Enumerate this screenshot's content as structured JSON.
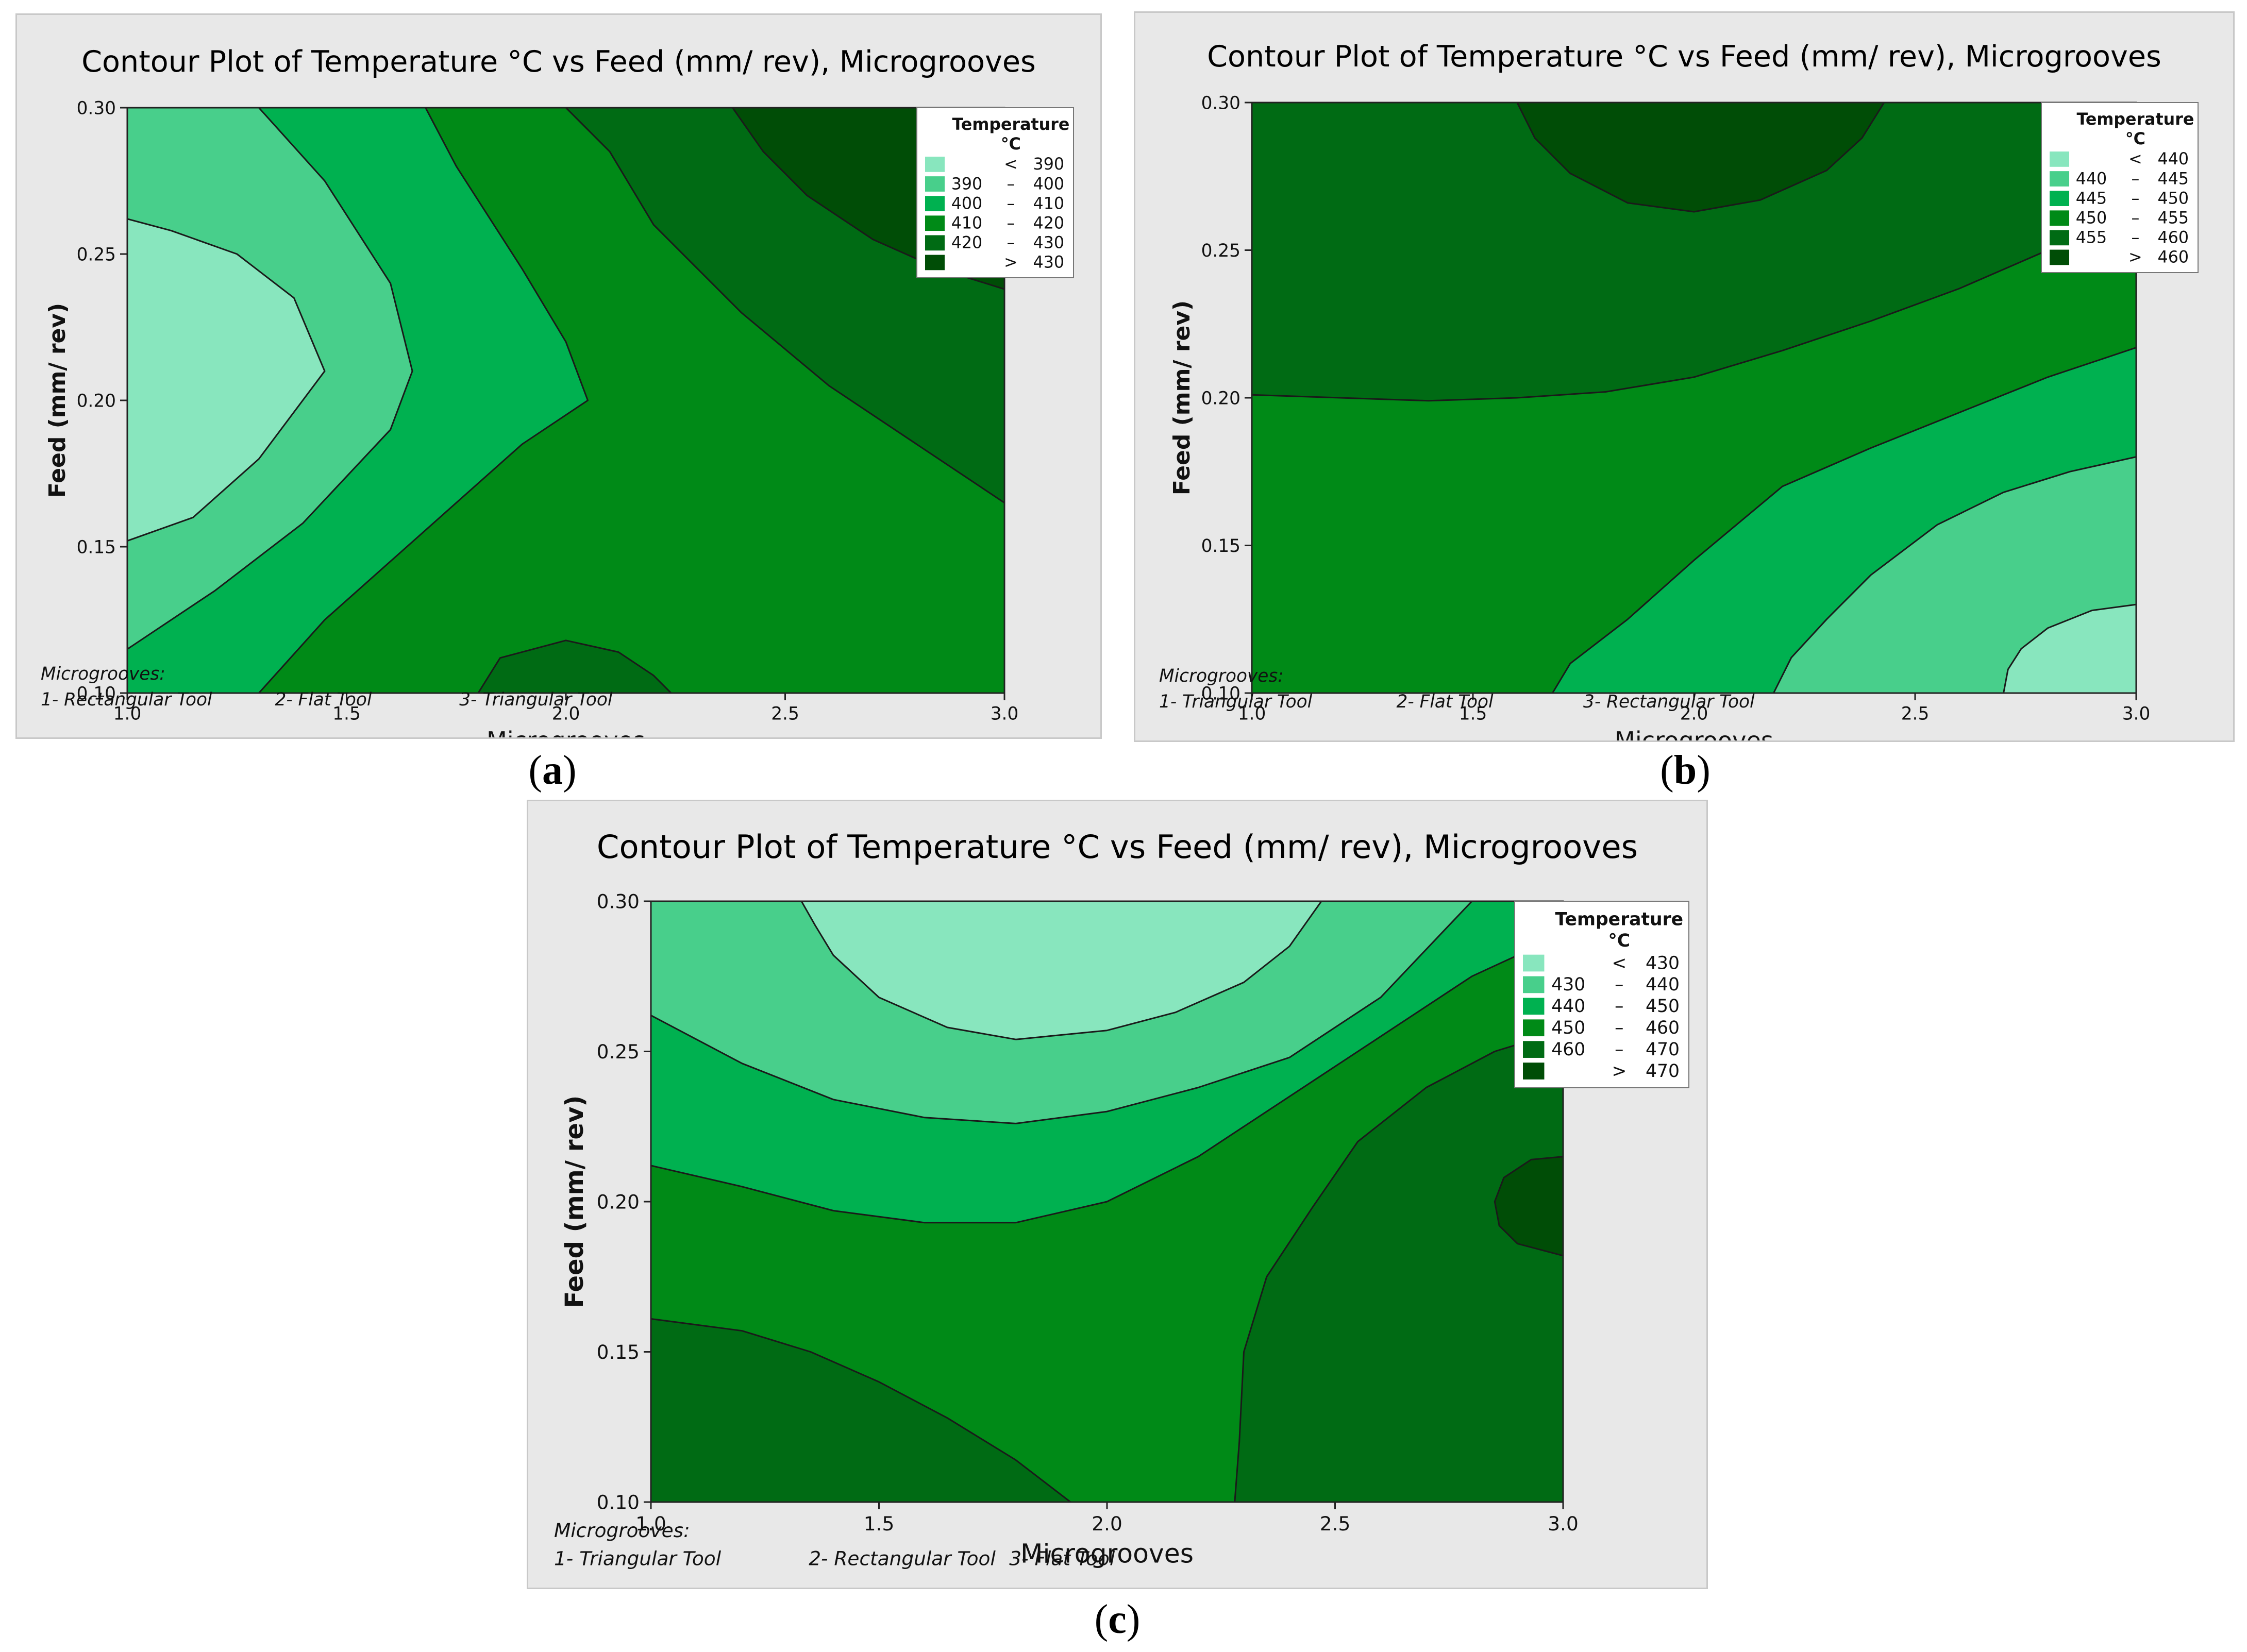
{
  "chart_data": [
    {
      "type": "contour",
      "panel_label": "a",
      "title": "Contour Plot of Temperature °C vs Feed (mm/ rev), Microgrooves",
      "xlabel": "Microgrooves",
      "ylabel": "Feed (mm/ rev)",
      "xlim": [
        1.0,
        3.0
      ],
      "ylim": [
        0.1,
        0.3
      ],
      "xticks": [
        "1.0",
        "1.5",
        "2.0",
        "2.5",
        "3.0"
      ],
      "yticks": [
        "0.10",
        "0.15",
        "0.20",
        "0.25",
        "0.30"
      ],
      "legend_title": [
        "Temperature",
        "°C"
      ],
      "legend": [
        {
          "lo": "",
          "sep": "<",
          "hi": "390",
          "color": "#88e6be"
        },
        {
          "lo": "390",
          "sep": "–",
          "hi": "400",
          "color": "#48cf8b"
        },
        {
          "lo": "400",
          "sep": "–",
          "hi": "410",
          "color": "#00b150"
        },
        {
          "lo": "410",
          "sep": "–",
          "hi": "420",
          "color": "#008a17"
        },
        {
          "lo": "420",
          "sep": "–",
          "hi": "430",
          "color": "#006b14"
        },
        {
          "lo": "",
          "sep": ">",
          "hi": "430",
          "color": "#004d06"
        }
      ],
      "note_title": "Microgrooves:",
      "note_items": [
        "1- Rectangular Tool",
        "2- Flat Tool",
        "3- Triangular Tool"
      ],
      "regions": [
        {
          "level": 3,
          "points": [
            [
              1.0,
              0.1
            ],
            [
              3.0,
              0.1
            ],
            [
              3.0,
              0.3
            ],
            [
              1.0,
              0.3
            ]
          ]
        },
        {
          "level": 2,
          "points": [
            [
              1.0,
              0.1
            ],
            [
              1.3,
              0.1
            ],
            [
              1.45,
              0.125
            ],
            [
              1.6,
              0.145
            ],
            [
              1.75,
              0.165
            ],
            [
              1.9,
              0.185
            ],
            [
              2.05,
              0.2
            ],
            [
              2.0,
              0.22
            ],
            [
              1.9,
              0.245
            ],
            [
              1.75,
              0.28
            ],
            [
              1.68,
              0.3
            ],
            [
              1.0,
              0.3
            ]
          ]
        },
        {
          "level": 1,
          "points": [
            [
              1.0,
              0.115
            ],
            [
              1.2,
              0.135
            ],
            [
              1.4,
              0.158
            ],
            [
              1.6,
              0.19
            ],
            [
              1.65,
              0.21
            ],
            [
              1.6,
              0.24
            ],
            [
              1.45,
              0.275
            ],
            [
              1.3,
              0.3
            ],
            [
              1.0,
              0.3
            ]
          ]
        },
        {
          "level": 0,
          "points": [
            [
              1.0,
              0.152
            ],
            [
              1.15,
              0.16
            ],
            [
              1.3,
              0.18
            ],
            [
              1.45,
              0.21
            ],
            [
              1.38,
              0.235
            ],
            [
              1.25,
              0.25
            ],
            [
              1.1,
              0.258
            ],
            [
              1.0,
              0.262
            ]
          ]
        },
        {
          "level": 4,
          "points": [
            [
              2.0,
              0.3
            ],
            [
              3.0,
              0.3
            ],
            [
              3.0,
              0.165
            ],
            [
              2.8,
              0.185
            ],
            [
              2.6,
              0.205
            ],
            [
              2.4,
              0.23
            ],
            [
              2.2,
              0.26
            ],
            [
              2.1,
              0.285
            ]
          ]
        },
        {
          "level": 5,
          "points": [
            [
              2.38,
              0.3
            ],
            [
              3.0,
              0.3
            ],
            [
              3.0,
              0.238
            ],
            [
              2.85,
              0.245
            ],
            [
              2.7,
              0.255
            ],
            [
              2.55,
              0.27
            ],
            [
              2.45,
              0.285
            ]
          ]
        },
        {
          "level": 4,
          "points": [
            [
              1.8,
              0.1
            ],
            [
              1.85,
              0.112
            ],
            [
              2.0,
              0.118
            ],
            [
              2.12,
              0.114
            ],
            [
              2.2,
              0.106
            ],
            [
              2.24,
              0.1
            ]
          ]
        }
      ]
    },
    {
      "type": "contour",
      "panel_label": "b",
      "title": "Contour Plot of Temperature °C vs Feed (mm/ rev), Microgrooves",
      "xlabel": "Microgrooves",
      "ylabel": "Feed (mm/ rev)",
      "xlim": [
        1.0,
        3.0
      ],
      "ylim": [
        0.1,
        0.3
      ],
      "xticks": [
        "1.0",
        "1.5",
        "2.0",
        "2.5",
        "3.0"
      ],
      "yticks": [
        "0.10",
        "0.15",
        "0.20",
        "0.25",
        "0.30"
      ],
      "legend_title": [
        "Temperature",
        "°C"
      ],
      "legend": [
        {
          "lo": "",
          "sep": "<",
          "hi": "440",
          "color": "#88e6be"
        },
        {
          "lo": "440",
          "sep": "–",
          "hi": "445",
          "color": "#48cf8b"
        },
        {
          "lo": "445",
          "sep": "–",
          "hi": "450",
          "color": "#00b150"
        },
        {
          "lo": "450",
          "sep": "–",
          "hi": "455",
          "color": "#008a17"
        },
        {
          "lo": "455",
          "sep": "–",
          "hi": "460",
          "color": "#006b14"
        },
        {
          "lo": "",
          "sep": ">",
          "hi": "460",
          "color": "#004d06"
        }
      ],
      "note_title": "Microgrooves:",
      "note_items": [
        "1- Triangular Tool",
        "2- Flat Tool",
        "3- Rectangular Tool"
      ],
      "regions": [
        {
          "level": 4,
          "points": [
            [
              1.0,
              0.1
            ],
            [
              3.0,
              0.1
            ],
            [
              3.0,
              0.3
            ],
            [
              1.0,
              0.3
            ]
          ]
        },
        {
          "level": 3,
          "points": [
            [
              1.0,
              0.1
            ],
            [
              3.0,
              0.1
            ],
            [
              3.0,
              0.267
            ],
            [
              2.8,
              0.25
            ],
            [
              2.6,
              0.237
            ],
            [
              2.4,
              0.226
            ],
            [
              2.2,
              0.216
            ],
            [
              2.0,
              0.207
            ],
            [
              1.8,
              0.202
            ],
            [
              1.6,
              0.2
            ],
            [
              1.4,
              0.199
            ],
            [
              1.2,
              0.2
            ],
            [
              1.0,
              0.201
            ]
          ]
        },
        {
          "level": 2,
          "points": [
            [
              1.68,
              0.1
            ],
            [
              3.0,
              0.1
            ],
            [
              3.0,
              0.217
            ],
            [
              2.8,
              0.207
            ],
            [
              2.6,
              0.195
            ],
            [
              2.4,
              0.183
            ],
            [
              2.2,
              0.17
            ],
            [
              2.0,
              0.145
            ],
            [
              1.85,
              0.125
            ],
            [
              1.72,
              0.11
            ]
          ]
        },
        {
          "level": 1,
          "points": [
            [
              2.18,
              0.1
            ],
            [
              3.0,
              0.1
            ],
            [
              3.0,
              0.18
            ],
            [
              2.85,
              0.175
            ],
            [
              2.7,
              0.168
            ],
            [
              2.55,
              0.157
            ],
            [
              2.4,
              0.14
            ],
            [
              2.3,
              0.125
            ],
            [
              2.22,
              0.112
            ]
          ]
        },
        {
          "level": 0,
          "points": [
            [
              2.7,
              0.1
            ],
            [
              3.0,
              0.1
            ],
            [
              3.0,
              0.13
            ],
            [
              2.9,
              0.128
            ],
            [
              2.8,
              0.122
            ],
            [
              2.74,
              0.115
            ],
            [
              2.71,
              0.108
            ]
          ]
        },
        {
          "level": 5,
          "points": [
            [
              1.6,
              0.3
            ],
            [
              2.43,
              0.3
            ],
            [
              2.38,
              0.288
            ],
            [
              2.3,
              0.277
            ],
            [
              2.15,
              0.267
            ],
            [
              2.0,
              0.263
            ],
            [
              1.85,
              0.266
            ],
            [
              1.72,
              0.276
            ],
            [
              1.64,
              0.288
            ]
          ]
        }
      ]
    },
    {
      "type": "contour",
      "panel_label": "c",
      "title": "Contour Plot of Temperature °C vs Feed (mm/ rev), Microgrooves",
      "xlabel": "Microgrooves",
      "ylabel": "Feed (mm/ rev)",
      "xlim": [
        1.0,
        3.0
      ],
      "ylim": [
        0.1,
        0.3
      ],
      "xticks": [
        "1.0",
        "1.5",
        "2.0",
        "2.5",
        "3.0"
      ],
      "yticks": [
        "0.10",
        "0.15",
        "0.20",
        "0.25",
        "0.30"
      ],
      "legend_title": [
        "Temperature",
        "°C"
      ],
      "legend": [
        {
          "lo": "",
          "sep": "<",
          "hi": "430",
          "color": "#88e6be"
        },
        {
          "lo": "430",
          "sep": "–",
          "hi": "440",
          "color": "#48cf8b"
        },
        {
          "lo": "440",
          "sep": "–",
          "hi": "450",
          "color": "#00b150"
        },
        {
          "lo": "450",
          "sep": "–",
          "hi": "460",
          "color": "#008a17"
        },
        {
          "lo": "460",
          "sep": "–",
          "hi": "470",
          "color": "#006b14"
        },
        {
          "lo": "",
          "sep": ">",
          "hi": "470",
          "color": "#004d06"
        }
      ],
      "note_title": "Microgrooves:",
      "note_items": [
        "1- Triangular Tool",
        "2- Rectangular Tool",
        "3- Flat Tool"
      ],
      "regions": [
        {
          "level": 3,
          "points": [
            [
              1.0,
              0.1
            ],
            [
              3.0,
              0.1
            ],
            [
              3.0,
              0.3
            ],
            [
              1.0,
              0.3
            ]
          ]
        },
        {
          "level": 2,
          "points": [
            [
              1.0,
              0.212
            ],
            [
              1.2,
              0.205
            ],
            [
              1.4,
              0.197
            ],
            [
              1.6,
              0.193
            ],
            [
              1.8,
              0.193
            ],
            [
              2.0,
              0.2
            ],
            [
              2.2,
              0.215
            ],
            [
              2.4,
              0.235
            ],
            [
              2.6,
              0.255
            ],
            [
              2.8,
              0.275
            ],
            [
              3.0,
              0.289
            ],
            [
              3.0,
              0.3
            ],
            [
              1.0,
              0.3
            ]
          ]
        },
        {
          "level": 1,
          "points": [
            [
              1.0,
              0.262
            ],
            [
              1.2,
              0.246
            ],
            [
              1.4,
              0.234
            ],
            [
              1.6,
              0.228
            ],
            [
              1.8,
              0.226
            ],
            [
              2.0,
              0.23
            ],
            [
              2.2,
              0.238
            ],
            [
              2.4,
              0.248
            ],
            [
              2.6,
              0.268
            ],
            [
              2.8,
              0.3
            ],
            [
              1.0,
              0.3
            ]
          ]
        },
        {
          "level": 0,
          "points": [
            [
              1.33,
              0.3
            ],
            [
              2.47,
              0.3
            ],
            [
              2.4,
              0.285
            ],
            [
              2.3,
              0.273
            ],
            [
              2.15,
              0.263
            ],
            [
              2.0,
              0.257
            ],
            [
              1.8,
              0.254
            ],
            [
              1.65,
              0.258
            ],
            [
              1.5,
              0.268
            ],
            [
              1.4,
              0.282
            ],
            [
              1.36,
              0.292
            ]
          ]
        },
        {
          "level": 4,
          "points": [
            [
              1.0,
              0.1
            ],
            [
              1.92,
              0.1
            ],
            [
              1.8,
              0.114
            ],
            [
              1.65,
              0.128
            ],
            [
              1.5,
              0.14
            ],
            [
              1.35,
              0.15
            ],
            [
              1.2,
              0.157
            ],
            [
              1.0,
              0.161
            ]
          ]
        },
        {
          "level": 4,
          "points": [
            [
              2.28,
              0.1
            ],
            [
              3.0,
              0.1
            ],
            [
              3.0,
              0.257
            ],
            [
              2.85,
              0.25
            ],
            [
              2.7,
              0.238
            ],
            [
              2.55,
              0.22
            ],
            [
              2.45,
              0.198
            ],
            [
              2.35,
              0.175
            ],
            [
              2.3,
              0.15
            ],
            [
              2.29,
              0.12
            ]
          ]
        },
        {
          "level": 5,
          "points": [
            [
              3.0,
              0.182
            ],
            [
              2.9,
              0.186
            ],
            [
              2.86,
              0.192
            ],
            [
              2.85,
              0.2
            ],
            [
              2.87,
              0.208
            ],
            [
              2.93,
              0.214
            ],
            [
              3.0,
              0.215
            ]
          ]
        }
      ]
    }
  ]
}
